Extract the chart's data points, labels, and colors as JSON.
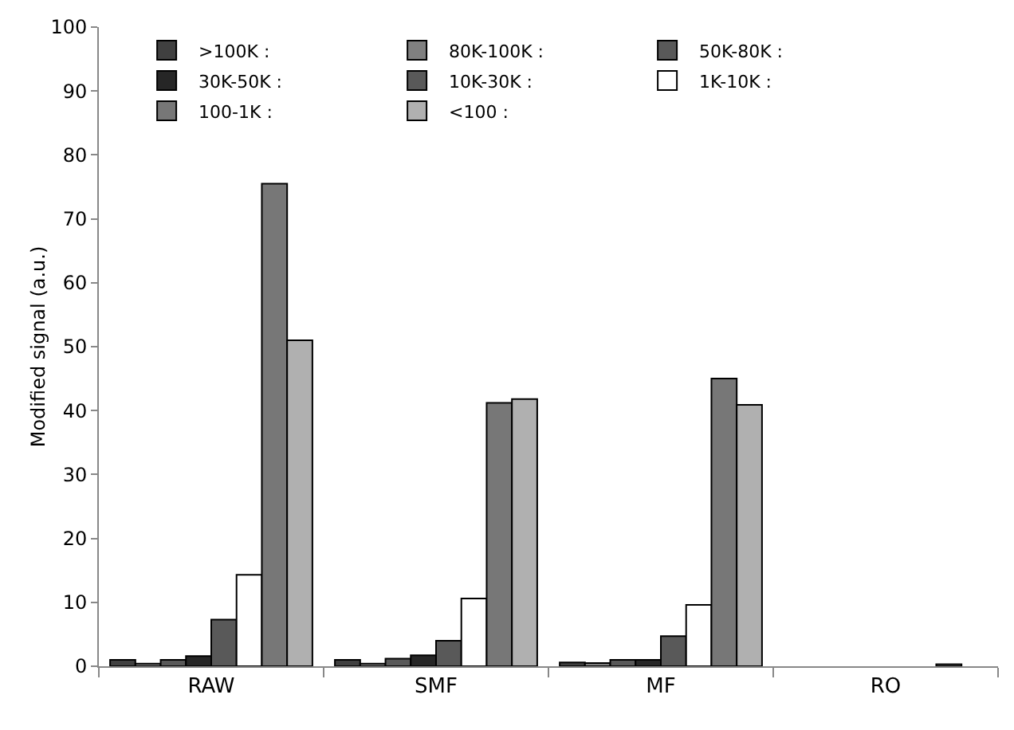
{
  "chart_data": {
    "type": "bar",
    "ylabel": "Modified signal (a.u.)",
    "categories": [
      "RAW",
      "SMF",
      "MF",
      "RO"
    ],
    "series": [
      {
        "name": ">100K :",
        "color": "#404040",
        "values": [
          1.0,
          1.0,
          0.6,
          null
        ]
      },
      {
        "name": "80K-100K :",
        "color": "#808080",
        "values": [
          0.4,
          0.4,
          0.5,
          null
        ]
      },
      {
        "name": "50K-80K :",
        "color": "#595959",
        "values": [
          1.0,
          1.2,
          1.0,
          null
        ]
      },
      {
        "name": "30K-50K :",
        "color": "#262626",
        "values": [
          1.6,
          1.7,
          1.0,
          null
        ]
      },
      {
        "name": "10K-30K :",
        "color": "#595959",
        "values": [
          7.3,
          4.0,
          4.7,
          null
        ]
      },
      {
        "name": "1K-10K :",
        "color": "#ffffff",
        "values": [
          14.3,
          10.6,
          9.6,
          null
        ]
      },
      {
        "name": "100-1K :",
        "color": "#777777",
        "values": [
          75.5,
          41.2,
          45,
          0.3
        ]
      },
      {
        "name": "<100 :",
        "color": "#b0b0b0",
        "values": [
          51,
          41.8,
          40.9,
          null
        ]
      }
    ],
    "ylim": [
      0,
      100
    ],
    "yticks": [
      0,
      10,
      20,
      30,
      40,
      50,
      60,
      70,
      80,
      90,
      100
    ],
    "grid": false,
    "legend": "top"
  }
}
